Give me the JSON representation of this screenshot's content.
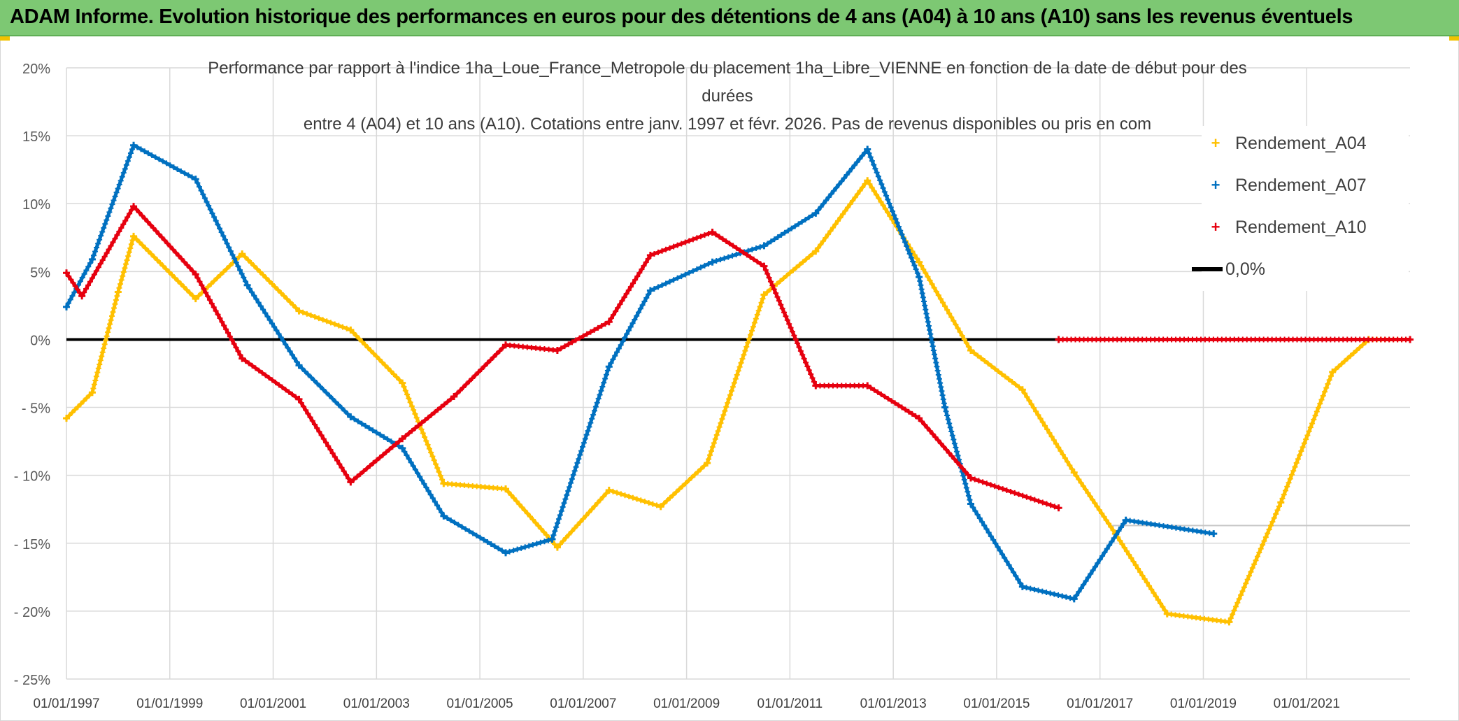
{
  "banner": {
    "title": "ADAM Informe. Evolution historique des performances en euros pour des détentions de 4 ans (A04) à 10 ans (A10) sans les revenus éventuels"
  },
  "colors": {
    "banner": "#7dc873",
    "A04": "#ffc000",
    "A07": "#0070c0",
    "A10": "#e6000f",
    "zero": "#000000",
    "grid": "#d9d9d9"
  },
  "chart_data": {
    "type": "scatter",
    "title_lines": [
      "Performance par rapport à l'indice 1ha_Loue_France_Metropole  du placement 1ha_Libre_VIENNE en fonction de la date de début pour des",
      "durées",
      "entre 4 (A04) et 10 ans (A10). Cotations entre janv. 1997 et févr. 2026. Pas de revenus disponibles ou pris en com"
    ],
    "xlabel": "",
    "ylabel": "",
    "x_range": [
      1997.0,
      2023.0
    ],
    "ylim": [
      -25,
      20
    ],
    "y_ticks": [
      20,
      15,
      10,
      5,
      0,
      -5,
      -10,
      -15,
      -20,
      -25
    ],
    "y_tick_labels": [
      "20%",
      "15%",
      "10%",
      "5%",
      "0%",
      "- 5%",
      "- 10%",
      "- 15%",
      "- 20%",
      "- 25%"
    ],
    "x_ticks": [
      1997,
      1999,
      2001,
      2003,
      2005,
      2007,
      2009,
      2011,
      2013,
      2015,
      2017,
      2019,
      2021
    ],
    "x_tick_labels": [
      "01/01/1997",
      "01/01/1999",
      "01/01/2001",
      "01/01/2003",
      "01/01/2005",
      "01/01/2007",
      "01/01/2009",
      "01/01/2011",
      "01/01/2013",
      "01/01/2015",
      "01/01/2017",
      "01/01/2019",
      "01/01/2021"
    ],
    "grid": true,
    "legend_position": "top-right",
    "series": [
      {
        "name": "Rendement_A04",
        "marker": "+",
        "points": [
          [
            1997.0,
            -5.8
          ],
          [
            1997.5,
            -3.9
          ],
          [
            1998.0,
            3.5
          ],
          [
            1998.3,
            7.6
          ],
          [
            1999.5,
            3.0
          ],
          [
            2000.4,
            6.3
          ],
          [
            2001.5,
            2.1
          ],
          [
            2002.5,
            0.7
          ],
          [
            2003.5,
            -3.2
          ],
          [
            2004.3,
            -10.6
          ],
          [
            2005.5,
            -11.0
          ],
          [
            2006.5,
            -15.3
          ],
          [
            2007.5,
            -11.1
          ],
          [
            2008.5,
            -12.3
          ],
          [
            2009.4,
            -9.1
          ],
          [
            2010.5,
            3.3
          ],
          [
            2011.5,
            6.5
          ],
          [
            2012.5,
            11.7
          ],
          [
            2013.5,
            5.7
          ],
          [
            2014.5,
            -0.8
          ],
          [
            2015.5,
            -3.7
          ],
          [
            2016.5,
            -9.8
          ],
          [
            2017.3,
            -14.3
          ],
          [
            2018.3,
            -20.2
          ],
          [
            2019.5,
            -20.8
          ],
          [
            2020.5,
            -12.0
          ],
          [
            2021.5,
            -2.4
          ],
          [
            2022.2,
            0.0
          ],
          [
            2023.0,
            0.0
          ]
        ]
      },
      {
        "name": "Rendement_A07",
        "marker": "+",
        "points": [
          [
            1997.0,
            2.4
          ],
          [
            1997.5,
            5.9
          ],
          [
            1998.3,
            14.3
          ],
          [
            1999.5,
            11.8
          ],
          [
            2000.5,
            4.0
          ],
          [
            2001.5,
            -1.9
          ],
          [
            2002.5,
            -5.7
          ],
          [
            2003.5,
            -8.0
          ],
          [
            2004.3,
            -13.0
          ],
          [
            2005.5,
            -15.7
          ],
          [
            2006.4,
            -14.7
          ],
          [
            2007.5,
            -2.0
          ],
          [
            2008.3,
            3.6
          ],
          [
            2009.5,
            5.7
          ],
          [
            2010.5,
            6.9
          ],
          [
            2011.5,
            9.3
          ],
          [
            2012.5,
            14.0
          ],
          [
            2013.5,
            4.6
          ],
          [
            2014.0,
            -5.0
          ],
          [
            2014.5,
            -12.1
          ],
          [
            2015.5,
            -18.2
          ],
          [
            2016.5,
            -19.1
          ],
          [
            2017.5,
            -13.3
          ],
          [
            2019.2,
            -14.3
          ]
        ]
      },
      {
        "name": "Rendement_A10",
        "marker": "+",
        "points": [
          [
            1997.0,
            4.9
          ],
          [
            1997.3,
            3.2
          ],
          [
            1998.3,
            9.8
          ],
          [
            1999.5,
            4.8
          ],
          [
            2000.4,
            -1.4
          ],
          [
            2001.5,
            -4.4
          ],
          [
            2002.5,
            -10.5
          ],
          [
            2003.5,
            -7.3
          ],
          [
            2004.5,
            -4.2
          ],
          [
            2005.5,
            -0.4
          ],
          [
            2006.5,
            -0.8
          ],
          [
            2007.5,
            1.3
          ],
          [
            2008.3,
            6.2
          ],
          [
            2009.5,
            7.9
          ],
          [
            2010.5,
            5.4
          ],
          [
            2011.5,
            -3.4
          ],
          [
            2012.5,
            -3.4
          ],
          [
            2013.5,
            -5.8
          ],
          [
            2014.5,
            -10.2
          ],
          [
            2016.2,
            -12.4
          ]
        ]
      },
      {
        "name": "Rendement_A10_zero_segment",
        "marker": "+",
        "points": [
          [
            2016.2,
            0.0
          ],
          [
            2023.0,
            0.0
          ]
        ]
      }
    ],
    "reference_line": {
      "name": "0,0%",
      "value": 0
    },
    "legend": [
      {
        "label": "Rendement_A04",
        "marker": "+",
        "color": "#ffc000"
      },
      {
        "label": "Rendement_A07",
        "marker": "+",
        "color": "#0070c0"
      },
      {
        "label": "Rendement_A10",
        "marker": "+",
        "color": "#e6000f"
      },
      {
        "label": "0,0%",
        "marker": "line",
        "color": "#000000"
      }
    ]
  }
}
